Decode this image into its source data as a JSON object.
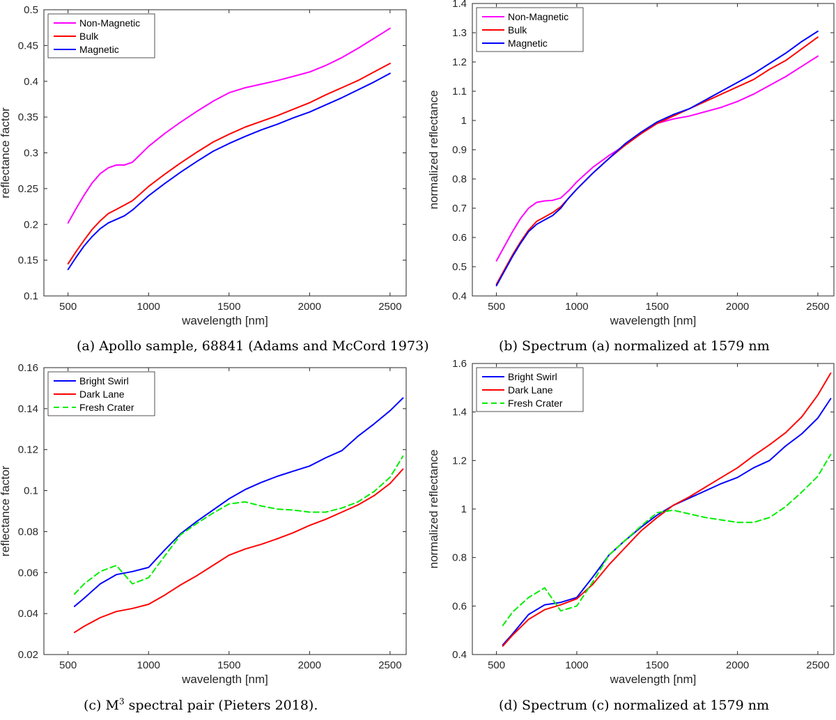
{
  "chart_data": [
    {
      "id": "a",
      "type": "line",
      "xlabel": "wavelength [nm]",
      "ylabel": "reflectance factor",
      "xlim": [
        350,
        2600
      ],
      "ylim": [
        0.1,
        0.5
      ],
      "xticks": [
        500,
        1000,
        1500,
        2000,
        2500
      ],
      "xtick_labels": [
        "500",
        "1000",
        "1500",
        "2000",
        "2500"
      ],
      "yticks": [
        0.1,
        0.15,
        0.2,
        0.25,
        0.3,
        0.35,
        0.4,
        0.45,
        0.5
      ],
      "ytick_labels": [
        "0.1",
        "0.15",
        "0.2",
        "0.25",
        "0.3",
        "0.35",
        "0.4",
        "0.45",
        "0.5"
      ],
      "legend_position": "top-left",
      "x": [
        500,
        550,
        600,
        650,
        700,
        750,
        800,
        850,
        900,
        950,
        1000,
        1100,
        1200,
        1300,
        1400,
        1500,
        1600,
        1700,
        1800,
        1900,
        2000,
        2100,
        2200,
        2300,
        2400,
        2500
      ],
      "series": [
        {
          "name": "Non-Magnetic",
          "color": "#ff00ff",
          "dash": "solid",
          "values": [
            0.202,
            0.222,
            0.241,
            0.258,
            0.271,
            0.279,
            0.283,
            0.283,
            0.287,
            0.298,
            0.309,
            0.327,
            0.343,
            0.358,
            0.372,
            0.384,
            0.391,
            0.396,
            0.401,
            0.407,
            0.413,
            0.422,
            0.433,
            0.446,
            0.46,
            0.474
          ]
        },
        {
          "name": "Bulk",
          "color": "#ff0000",
          "dash": "solid",
          "values": [
            0.145,
            0.162,
            0.178,
            0.193,
            0.205,
            0.215,
            0.221,
            0.227,
            0.233,
            0.243,
            0.253,
            0.27,
            0.286,
            0.301,
            0.315,
            0.326,
            0.336,
            0.344,
            0.352,
            0.361,
            0.37,
            0.381,
            0.391,
            0.401,
            0.413,
            0.425
          ]
        },
        {
          "name": "Magnetic",
          "color": "#0000ff",
          "dash": "solid",
          "values": [
            0.137,
            0.154,
            0.17,
            0.183,
            0.194,
            0.202,
            0.207,
            0.212,
            0.22,
            0.23,
            0.24,
            0.257,
            0.273,
            0.288,
            0.302,
            0.313,
            0.323,
            0.332,
            0.34,
            0.349,
            0.357,
            0.367,
            0.377,
            0.388,
            0.399,
            0.411
          ]
        }
      ]
    },
    {
      "id": "b",
      "type": "line",
      "xlabel": "wavelength [nm]",
      "ylabel": "normalized reflectance",
      "xlim": [
        350,
        2600
      ],
      "ylim": [
        0.4,
        1.4
      ],
      "xticks": [
        500,
        1000,
        1500,
        2000,
        2500
      ],
      "xtick_labels": [
        "500",
        "1000",
        "1500",
        "2000",
        "2500"
      ],
      "yticks": [
        0.4,
        0.5,
        0.6,
        0.7,
        0.8,
        0.9,
        1,
        1.1,
        1.2,
        1.3,
        1.4
      ],
      "ytick_labels": [
        "0.4",
        "0.5",
        "0.6",
        "0.7",
        "0.8",
        "0.9",
        "1",
        "1.1",
        "1.2",
        "1.3",
        "1.4"
      ],
      "legend_position": "top-left",
      "x": [
        500,
        550,
        600,
        650,
        700,
        750,
        800,
        850,
        900,
        950,
        1000,
        1100,
        1200,
        1300,
        1400,
        1500,
        1600,
        1700,
        1800,
        1900,
        2000,
        2100,
        2200,
        2300,
        2400,
        2500
      ],
      "series": [
        {
          "name": "Non-Magnetic",
          "color": "#ff00ff",
          "dash": "solid",
          "values": [
            0.52,
            0.57,
            0.62,
            0.665,
            0.7,
            0.72,
            0.725,
            0.727,
            0.735,
            0.76,
            0.79,
            0.84,
            0.88,
            0.915,
            0.955,
            0.99,
            1.005,
            1.015,
            1.03,
            1.045,
            1.065,
            1.09,
            1.12,
            1.15,
            1.185,
            1.22
          ]
        },
        {
          "name": "Bulk",
          "color": "#ff0000",
          "dash": "solid",
          "values": [
            0.44,
            0.49,
            0.54,
            0.585,
            0.625,
            0.655,
            0.67,
            0.685,
            0.705,
            0.735,
            0.765,
            0.82,
            0.87,
            0.915,
            0.955,
            0.99,
            1.015,
            1.04,
            1.065,
            1.09,
            1.115,
            1.14,
            1.175,
            1.205,
            1.245,
            1.285
          ]
        },
        {
          "name": "Magnetic",
          "color": "#0000ff",
          "dash": "solid",
          "values": [
            0.435,
            0.485,
            0.535,
            0.58,
            0.62,
            0.645,
            0.66,
            0.675,
            0.7,
            0.735,
            0.765,
            0.82,
            0.87,
            0.92,
            0.96,
            0.995,
            1.02,
            1.04,
            1.07,
            1.1,
            1.13,
            1.16,
            1.195,
            1.23,
            1.27,
            1.305
          ]
        }
      ]
    },
    {
      "id": "c",
      "type": "line",
      "xlabel": "wavelength [nm]",
      "ylabel": "reflectance factor",
      "xlim": [
        350,
        2600
      ],
      "ylim": [
        0.02,
        0.16
      ],
      "xticks": [
        500,
        1000,
        1500,
        2000,
        2500
      ],
      "xtick_labels": [
        "500",
        "1000",
        "1500",
        "2000",
        "2500"
      ],
      "yticks": [
        0.02,
        0.04,
        0.06,
        0.08,
        0.1,
        0.12,
        0.14,
        0.16
      ],
      "ytick_labels": [
        "0.02",
        "0.04",
        "0.06",
        "0.08",
        "0.1",
        "0.12",
        "0.14",
        "0.16"
      ],
      "legend_position": "top-left",
      "x": [
        540,
        600,
        700,
        800,
        900,
        1000,
        1100,
        1200,
        1300,
        1400,
        1500,
        1600,
        1700,
        1800,
        1900,
        2000,
        2100,
        2200,
        2300,
        2400,
        2500,
        2580
      ],
      "series": [
        {
          "name": "Bright Swirl",
          "color": "#0000ff",
          "dash": "solid",
          "values": [
            0.0435,
            0.0475,
            0.0545,
            0.059,
            0.0605,
            0.0625,
            0.071,
            0.079,
            0.085,
            0.0905,
            0.096,
            0.1005,
            0.104,
            0.107,
            0.1095,
            0.112,
            0.116,
            0.1195,
            0.1265,
            0.1325,
            0.139,
            0.1452
          ]
        },
        {
          "name": "Dark Lane",
          "color": "#ff0000",
          "dash": "solid",
          "values": [
            0.0308,
            0.0338,
            0.038,
            0.041,
            0.0425,
            0.0445,
            0.049,
            0.054,
            0.0585,
            0.0635,
            0.0685,
            0.0715,
            0.0738,
            0.0765,
            0.0795,
            0.083,
            0.086,
            0.0895,
            0.093,
            0.0975,
            0.1035,
            0.1105
          ]
        },
        {
          "name": "Fresh Crater",
          "color": "#00ee00",
          "dash": "dashed",
          "values": [
            0.0495,
            0.0545,
            0.0605,
            0.0635,
            0.0545,
            0.0575,
            0.068,
            0.0785,
            0.084,
            0.089,
            0.0935,
            0.0945,
            0.0925,
            0.091,
            0.0905,
            0.0895,
            0.0895,
            0.0915,
            0.0945,
            0.0995,
            0.1065,
            0.1168
          ]
        }
      ]
    },
    {
      "id": "d",
      "type": "line",
      "xlabel": "wavelength [nm]",
      "ylabel": "normalized reflectance",
      "xlim": [
        350,
        2600
      ],
      "ylim": [
        0.4,
        1.6
      ],
      "xticks": [
        500,
        1000,
        1500,
        2000,
        2500
      ],
      "xtick_labels": [
        "500",
        "1000",
        "1500",
        "2000",
        "2500"
      ],
      "yticks": [
        0.4,
        0.6,
        0.8,
        1,
        1.2,
        1.4,
        1.6
      ],
      "ytick_labels": [
        "0.4",
        "0.6",
        "0.8",
        "1",
        "1.2",
        "1.4",
        "1.6"
      ],
      "legend_position": "top-left",
      "x": [
        540,
        600,
        700,
        800,
        900,
        1000,
        1100,
        1200,
        1300,
        1400,
        1500,
        1600,
        1700,
        1800,
        1900,
        2000,
        2100,
        2200,
        2300,
        2400,
        2500,
        2580
      ],
      "series": [
        {
          "name": "Bright Swirl",
          "color": "#0000ff",
          "dash": "solid",
          "values": [
            0.44,
            0.485,
            0.565,
            0.605,
            0.615,
            0.635,
            0.72,
            0.81,
            0.87,
            0.925,
            0.975,
            1.015,
            1.045,
            1.075,
            1.105,
            1.13,
            1.17,
            1.2,
            1.26,
            1.31,
            1.375,
            1.455
          ]
        },
        {
          "name": "Dark Lane",
          "color": "#ff0000",
          "dash": "solid",
          "values": [
            0.435,
            0.48,
            0.545,
            0.585,
            0.605,
            0.63,
            0.69,
            0.77,
            0.84,
            0.91,
            0.965,
            1.015,
            1.05,
            1.09,
            1.13,
            1.17,
            1.22,
            1.265,
            1.315,
            1.38,
            1.47,
            1.56
          ]
        },
        {
          "name": "Fresh Crater",
          "color": "#00ee00",
          "dash": "dashed",
          "values": [
            0.52,
            0.575,
            0.635,
            0.675,
            0.58,
            0.6,
            0.7,
            0.81,
            0.87,
            0.93,
            0.985,
            0.995,
            0.98,
            0.965,
            0.955,
            0.945,
            0.945,
            0.965,
            1.01,
            1.07,
            1.135,
            1.225
          ]
        }
      ]
    }
  ],
  "captions": {
    "a": "(a) Apollo sample, 68841 (Adams and McCord 1973)",
    "b": "(b) Spectrum (a) normalized at 1579 nm",
    "c_prefix": "(c) M",
    "c_sup": "3",
    "c_suffix": " spectral pair (Pieters 2018).",
    "d": "(d) Spectrum (c) normalized at 1579 nm"
  }
}
